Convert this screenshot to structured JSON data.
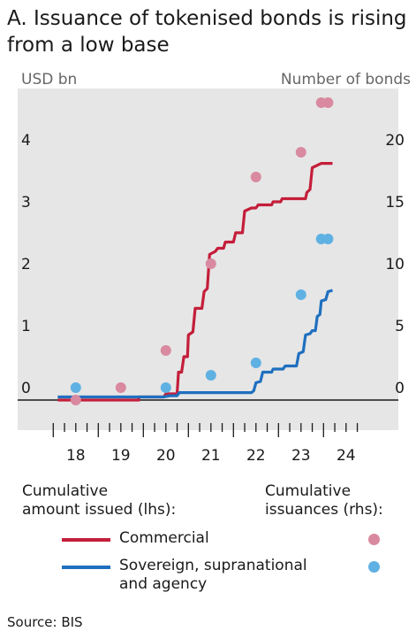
{
  "chart_data": {
    "type": "line",
    "title": "A. Issuance of tokenised bonds is rising from a low base",
    "ylabel_left": "USD bn",
    "ylabel_right": "Number of bonds",
    "x_ticks": [
      "18",
      "19",
      "20",
      "21",
      "22",
      "23",
      "24"
    ],
    "y_left_ticks": [
      "0",
      "1",
      "2",
      "3",
      "4"
    ],
    "y_right_ticks": [
      "0",
      "5",
      "10",
      "15",
      "20"
    ],
    "ylim_left": [
      -0.45,
      4.6
    ],
    "ylim_right": [
      -2.25,
      23
    ],
    "xlim": [
      2017.7,
      2024.9
    ],
    "grid": false,
    "legend_group_line": "Cumulative\namount issued (lhs):",
    "legend_group_dot": "Cumulative\nissuances (rhs):",
    "series": [
      {
        "name": "Commercial",
        "kind": "line",
        "axis": "lhs",
        "color": "#c41e3a",
        "points": [
          [
            2018.1,
            0.0
          ],
          [
            2019.9,
            0.0
          ],
          [
            2019.9,
            0.05
          ],
          [
            2020.45,
            0.05
          ],
          [
            2020.5,
            0.1
          ],
          [
            2020.75,
            0.1
          ],
          [
            2020.78,
            0.45
          ],
          [
            2020.85,
            0.45
          ],
          [
            2020.9,
            0.7
          ],
          [
            2020.98,
            0.7
          ],
          [
            2021.0,
            1.05
          ],
          [
            2021.1,
            1.1
          ],
          [
            2021.15,
            1.48
          ],
          [
            2021.3,
            1.48
          ],
          [
            2021.35,
            1.75
          ],
          [
            2021.42,
            1.8
          ],
          [
            2021.47,
            2.35
          ],
          [
            2021.6,
            2.4
          ],
          [
            2021.65,
            2.45
          ],
          [
            2021.78,
            2.45
          ],
          [
            2021.82,
            2.55
          ],
          [
            2022.0,
            2.55
          ],
          [
            2022.05,
            2.7
          ],
          [
            2022.2,
            2.7
          ],
          [
            2022.25,
            3.05
          ],
          [
            2022.4,
            3.1
          ],
          [
            2022.5,
            3.1
          ],
          [
            2022.55,
            3.15
          ],
          [
            2022.85,
            3.15
          ],
          [
            2022.88,
            3.2
          ],
          [
            2023.05,
            3.2
          ],
          [
            2023.08,
            3.25
          ],
          [
            2023.6,
            3.25
          ],
          [
            2023.63,
            3.35
          ],
          [
            2023.7,
            3.4
          ],
          [
            2023.75,
            3.75
          ],
          [
            2023.95,
            3.82
          ],
          [
            2024.2,
            3.82
          ]
        ]
      },
      {
        "name": "Sovereign, supranational\nand agency",
        "kind": "line",
        "axis": "lhs",
        "color": "#1f6fbf",
        "points": [
          [
            2018.1,
            0.05
          ],
          [
            2020.45,
            0.05
          ],
          [
            2020.6,
            0.07
          ],
          [
            2020.75,
            0.07
          ],
          [
            2020.8,
            0.12
          ],
          [
            2022.4,
            0.12
          ],
          [
            2022.45,
            0.15
          ],
          [
            2022.5,
            0.28
          ],
          [
            2022.6,
            0.3
          ],
          [
            2022.65,
            0.45
          ],
          [
            2022.85,
            0.45
          ],
          [
            2022.88,
            0.5
          ],
          [
            2023.1,
            0.5
          ],
          [
            2023.15,
            0.55
          ],
          [
            2023.4,
            0.55
          ],
          [
            2023.45,
            0.75
          ],
          [
            2023.55,
            0.78
          ],
          [
            2023.6,
            1.05
          ],
          [
            2023.7,
            1.07
          ],
          [
            2023.75,
            1.12
          ],
          [
            2023.82,
            1.12
          ],
          [
            2023.86,
            1.35
          ],
          [
            2023.92,
            1.38
          ],
          [
            2023.95,
            1.6
          ],
          [
            2024.05,
            1.62
          ],
          [
            2024.1,
            1.75
          ],
          [
            2024.2,
            1.77
          ]
        ]
      },
      {
        "name": "Commercial",
        "kind": "dots",
        "axis": "rhs",
        "color": "#d98aa0",
        "points": [
          [
            2018.5,
            0
          ],
          [
            2019.5,
            1
          ],
          [
            2020.5,
            4
          ],
          [
            2021.5,
            11
          ],
          [
            2022.5,
            18
          ],
          [
            2023.5,
            20
          ],
          [
            2023.95,
            24
          ],
          [
            2024.1,
            24
          ]
        ]
      },
      {
        "name": "Sovereign, supranational\nand agency",
        "kind": "dots",
        "axis": "rhs",
        "color": "#5fb1e3",
        "points": [
          [
            2018.5,
            1
          ],
          [
            2020.5,
            1
          ],
          [
            2021.5,
            2
          ],
          [
            2022.5,
            3
          ],
          [
            2023.5,
            8.5
          ],
          [
            2023.95,
            13
          ],
          [
            2024.1,
            13
          ]
        ]
      }
    ],
    "source": "Source: BIS"
  }
}
